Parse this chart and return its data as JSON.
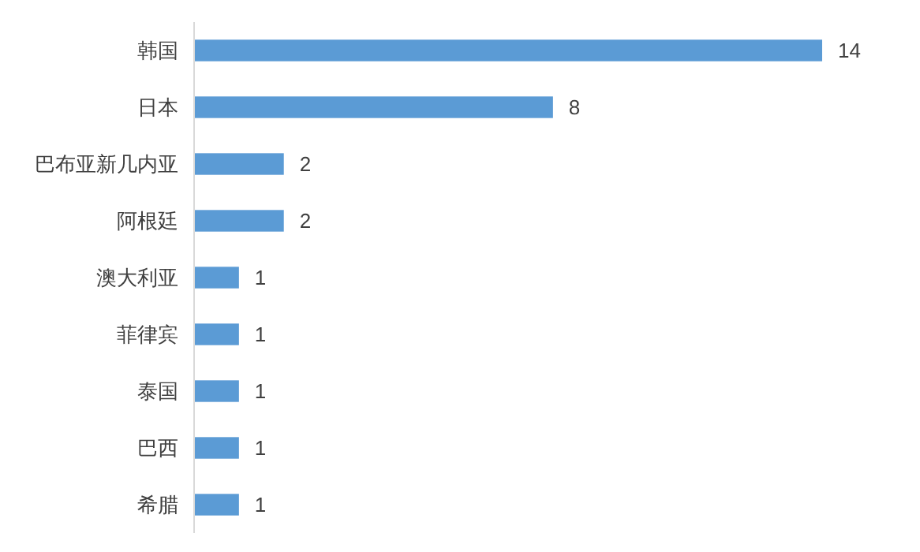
{
  "chart_data": {
    "type": "bar",
    "orientation": "horizontal",
    "categories": [
      "韩国",
      "日本",
      "巴布亚新几内亚",
      "阿根廷",
      "澳大利亚",
      "菲律宾",
      "泰国",
      "巴西",
      "希腊"
    ],
    "values": [
      14,
      8,
      2,
      2,
      1,
      1,
      1,
      1,
      1
    ],
    "color": "#5b9bd5",
    "data_labels": true
  }
}
